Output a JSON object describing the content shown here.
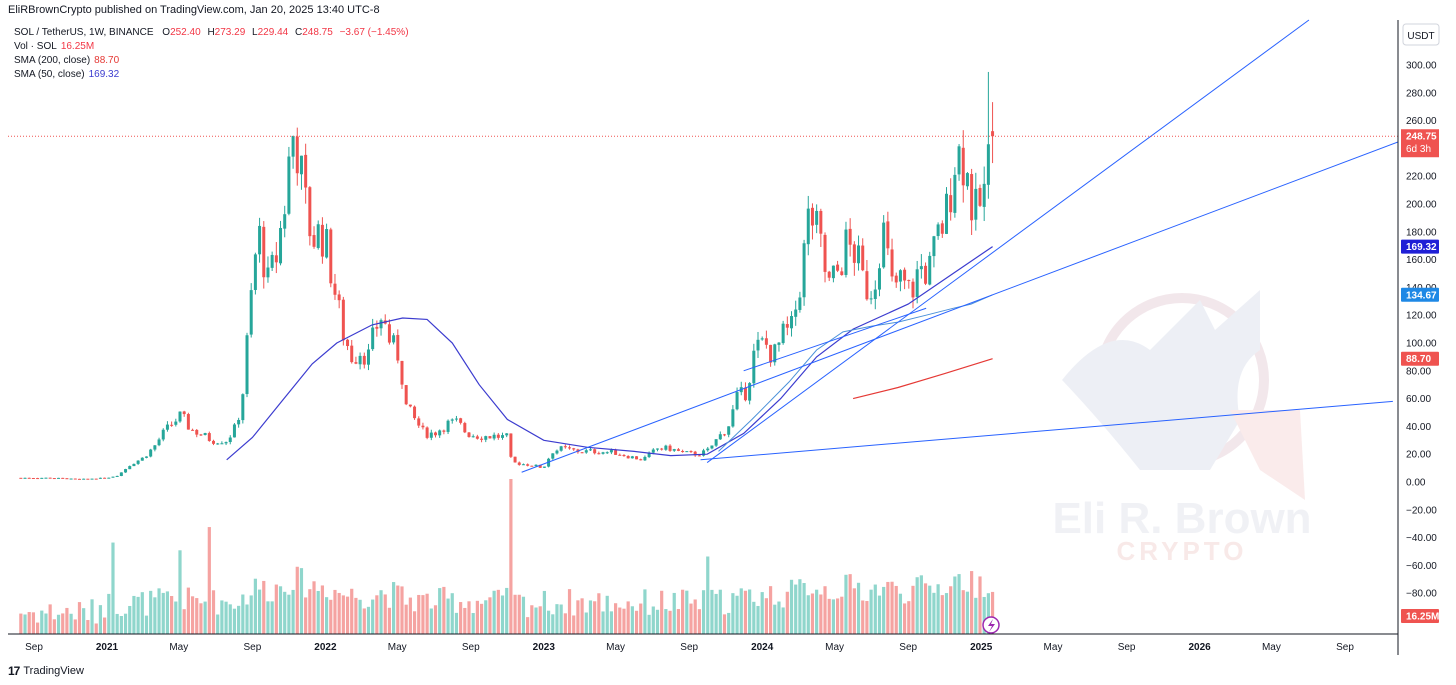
{
  "header": {
    "publisher": "EliRBrownCrypto published on TradingView.com, Jan 20, 2025 13:40 UTC-8"
  },
  "legend": {
    "symbol": "SOL / TetherUS, 1W, BINANCE",
    "ohlc": {
      "o_label": "O",
      "o": "252.40",
      "h_label": "H",
      "h": "273.29",
      "l_label": "L",
      "l": "229.44",
      "c_label": "C",
      "c": "248.75",
      "chg": "−3.67 (−1.45%)"
    },
    "vol_label": "Vol · SOL",
    "vol_value": "16.25M",
    "sma200_label": "SMA (200, close)",
    "sma200_value": "88.70",
    "sma50_label": "SMA (50, close)",
    "sma50_value": "169.32"
  },
  "currency": "USDT",
  "price_badges": {
    "last": "248.75",
    "countdown": "6d 3h",
    "sma50": "169.32",
    "trend": "134.67",
    "sma200": "88.70",
    "vol": "16.25M"
  },
  "watermark": {
    "line1": "Eli R. Brown",
    "line2": "CRYPTO"
  },
  "footer": {
    "brand": "TradingView"
  },
  "colors": {
    "up": "#26a69a",
    "down": "#ef5350",
    "vol_up": "#8fd6cc",
    "vol_down": "#f5a3a1",
    "sma50": "#3c3ccf",
    "sma200": "#e53935",
    "trendline": "#2962ff",
    "ema_blue": "#4a90d9"
  },
  "chart_data": {
    "type": "candlestick",
    "title": "SOL / TetherUS, 1W, BINANCE",
    "ylim": [
      -112,
      322
    ],
    "yticks": [
      300,
      280,
      260,
      240,
      220,
      200,
      180,
      160,
      140,
      120,
      100,
      80,
      60,
      40,
      20,
      0,
      -20,
      -40,
      -60,
      -80
    ],
    "ytick_labels": [
      "300.00",
      "280.00",
      "260.00",
      "240.00",
      "220.00",
      "200.00",
      "180.00",
      "160.00",
      "140.00",
      "120.00",
      "100.00",
      "80.00",
      "60.00",
      "40.00",
      "20.00",
      "0.00",
      "−20.00",
      "−40.00",
      "−60.00",
      "−80.00"
    ],
    "x_labels": [
      "Sep",
      "2021",
      "May",
      "Sep",
      "2022",
      "May",
      "Sep",
      "2023",
      "May",
      "Sep",
      "2024",
      "May",
      "Sep",
      "2025",
      "May",
      "Sep",
      "2026",
      "May",
      "Sep"
    ],
    "x_label_bold": [
      false,
      true,
      false,
      false,
      true,
      false,
      false,
      true,
      false,
      false,
      true,
      false,
      false,
      true,
      false,
      false,
      true,
      false,
      false
    ],
    "x_label_dates": [
      "2020-09",
      "2021-01",
      "2021-05",
      "2021-09",
      "2022-01",
      "2022-05",
      "2022-09",
      "2023-01",
      "2023-05",
      "2023-09",
      "2024-01",
      "2024-05",
      "2024-09",
      "2025-01",
      "2025-05",
      "2025-09",
      "2026-01",
      "2026-05",
      "2026-09"
    ],
    "first_bar_date": "2020-08-10",
    "last_bar_date": "2025-01-20",
    "bar_interval": "1W",
    "close_anchors": [
      [
        "2020-08-10",
        3
      ],
      [
        "2020-10-01",
        3
      ],
      [
        "2020-11-15",
        2
      ],
      [
        "2021-01-01",
        3
      ],
      [
        "2021-01-20",
        5
      ],
      [
        "2021-02-10",
        13
      ],
      [
        "2021-03-01",
        17
      ],
      [
        "2021-03-20",
        25
      ],
      [
        "2021-04-05",
        35
      ],
      [
        "2021-04-20",
        42
      ],
      [
        "2021-05-05",
        48
      ],
      [
        "2021-05-20",
        38
      ],
      [
        "2021-06-05",
        35
      ],
      [
        "2021-06-25",
        30
      ],
      [
        "2021-07-20",
        30
      ],
      [
        "2021-08-05",
        40
      ],
      [
        "2021-08-15",
        60
      ],
      [
        "2021-08-25",
        110
      ],
      [
        "2021-09-05",
        160
      ],
      [
        "2021-09-15",
        180
      ],
      [
        "2021-09-25",
        140
      ],
      [
        "2021-10-10",
        160
      ],
      [
        "2021-10-25",
        200
      ],
      [
        "2021-11-06",
        252
      ],
      [
        "2021-11-16",
        240
      ],
      [
        "2021-11-26",
        205
      ],
      [
        "2021-12-10",
        175
      ],
      [
        "2021-12-25",
        180
      ],
      [
        "2022-01-05",
        165
      ],
      [
        "2022-01-20",
        130
      ],
      [
        "2022-02-01",
        105
      ],
      [
        "2022-02-15",
        90
      ],
      [
        "2022-03-01",
        95
      ],
      [
        "2022-03-15",
        90
      ],
      [
        "2022-03-25",
        110
      ],
      [
        "2022-04-05",
        120
      ],
      [
        "2022-04-20",
        100
      ],
      [
        "2022-05-05",
        90
      ],
      [
        "2022-05-15",
        55
      ],
      [
        "2022-05-30",
        45
      ],
      [
        "2022-06-15",
        35
      ],
      [
        "2022-07-01",
        35
      ],
      [
        "2022-07-25",
        42
      ],
      [
        "2022-08-10",
        43
      ],
      [
        "2022-08-25",
        35
      ],
      [
        "2022-09-15",
        33
      ],
      [
        "2022-10-10",
        33
      ],
      [
        "2022-11-01",
        32
      ],
      [
        "2022-11-08",
        14
      ],
      [
        "2022-11-25",
        13
      ],
      [
        "2022-12-15",
        12
      ],
      [
        "2022-12-31",
        10
      ],
      [
        "2023-01-15",
        22
      ],
      [
        "2023-02-01",
        24
      ],
      [
        "2023-03-01",
        22
      ],
      [
        "2023-04-01",
        22
      ],
      [
        "2023-05-01",
        21
      ],
      [
        "2023-06-15",
        16
      ],
      [
        "2023-07-10",
        24
      ],
      [
        "2023-08-01",
        24
      ],
      [
        "2023-08-20",
        21
      ],
      [
        "2023-09-15",
        20
      ],
      [
        "2023-10-01",
        22
      ],
      [
        "2023-10-20",
        32
      ],
      [
        "2023-11-05",
        40
      ],
      [
        "2023-11-20",
        60
      ],
      [
        "2023-12-05",
        65
      ],
      [
        "2023-12-20",
        95
      ],
      [
        "2024-01-05",
        100
      ],
      [
        "2024-01-20",
        90
      ],
      [
        "2024-02-05",
        105
      ],
      [
        "2024-02-20",
        110
      ],
      [
        "2024-03-05",
        145
      ],
      [
        "2024-03-20",
        195
      ],
      [
        "2024-04-05",
        175
      ],
      [
        "2024-04-20",
        140
      ],
      [
        "2024-05-05",
        150
      ],
      [
        "2024-05-20",
        170
      ],
      [
        "2024-06-05",
        165
      ],
      [
        "2024-06-20",
        140
      ],
      [
        "2024-07-05",
        140
      ],
      [
        "2024-07-20",
        185
      ],
      [
        "2024-08-05",
        140
      ],
      [
        "2024-08-20",
        145
      ],
      [
        "2024-09-05",
        135
      ],
      [
        "2024-09-20",
        155
      ],
      [
        "2024-10-05",
        150
      ],
      [
        "2024-10-20",
        175
      ],
      [
        "2024-11-05",
        195
      ],
      [
        "2024-11-20",
        240
      ],
      [
        "2024-12-05",
        230
      ],
      [
        "2024-12-20",
        190
      ],
      [
        "2025-01-05",
        205
      ],
      [
        "2025-01-20",
        248.75
      ]
    ],
    "sma50": [
      [
        "2021-07-20",
        16
      ],
      [
        "2021-09-01",
        32
      ],
      [
        "2021-10-20",
        58
      ],
      [
        "2021-12-10",
        85
      ],
      [
        "2022-01-20",
        100
      ],
      [
        "2022-03-20",
        113
      ],
      [
        "2022-05-10",
        118
      ],
      [
        "2022-06-20",
        117
      ],
      [
        "2022-08-01",
        100
      ],
      [
        "2022-09-15",
        70
      ],
      [
        "2022-11-01",
        45
      ],
      [
        "2023-01-01",
        30
      ],
      [
        "2023-03-15",
        25
      ],
      [
        "2023-06-01",
        22
      ],
      [
        "2023-08-01",
        19
      ],
      [
        "2023-10-01",
        20
      ],
      [
        "2023-12-01",
        35
      ],
      [
        "2024-02-01",
        60
      ],
      [
        "2024-04-01",
        90
      ],
      [
        "2024-06-01",
        110
      ],
      [
        "2024-09-01",
        128
      ],
      [
        "2024-11-15",
        150
      ],
      [
        "2025-01-20",
        169.32
      ]
    ],
    "sma200": [
      [
        "2024-06-01",
        60
      ],
      [
        "2024-08-15",
        68
      ],
      [
        "2024-11-01",
        78
      ],
      [
        "2025-01-20",
        88.7
      ]
    ],
    "ema_inner": [
      [
        "2023-10-20",
        22
      ],
      [
        "2023-12-15",
        45
      ],
      [
        "2024-02-15",
        72
      ],
      [
        "2024-04-01",
        95
      ],
      [
        "2024-05-15",
        108
      ],
      [
        "2024-07-01",
        112
      ],
      [
        "2024-08-15",
        115
      ],
      [
        "2024-10-01",
        120
      ],
      [
        "2024-11-15",
        125
      ],
      [
        "2024-12-15",
        128
      ],
      [
        "2025-01-20",
        134.67
      ]
    ],
    "trendlines": [
      {
        "from": [
          "2022-11-25",
          7
        ],
        "to": [
          "2025-01-20",
          134.67
        ],
        "extend_to_edge": true
      },
      {
        "from": [
          "2023-10-01",
          14
        ],
        "to": [
          "2025-01-20",
          165
        ],
        "extend_to_edge": true
      },
      {
        "from": [
          "2023-12-01",
          80
        ],
        "to": [
          "2024-10-01",
          125
        ]
      },
      {
        "from": [
          "2023-09-20",
          16
        ],
        "to": [
          "2026-11-20",
          58
        ]
      }
    ],
    "last_price": 248.75,
    "volume_note": "scaled 0–1 relative to peak",
    "volume_peaks": [
      [
        "2022-11-08",
        1.0
      ],
      [
        "2021-06-20",
        0.69
      ],
      [
        "2021-01-10",
        0.59
      ],
      [
        "2021-05-01",
        0.54
      ],
      [
        "2023-10-05",
        0.5
      ]
    ]
  }
}
